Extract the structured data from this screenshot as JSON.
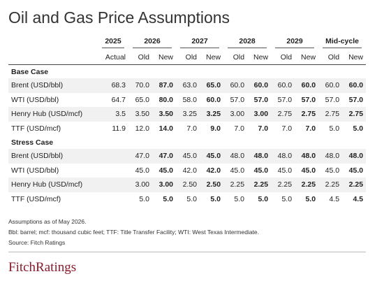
{
  "title": "Oil and Gas Price Assumptions",
  "table": {
    "years": [
      "2025",
      "2026",
      "2027",
      "2028",
      "2029",
      "Mid-cycle"
    ],
    "subheaders": [
      "Actual",
      "Old",
      "New",
      "Old",
      "New",
      "Old",
      "New",
      "Old",
      "New",
      "Old",
      "New"
    ],
    "sections": [
      {
        "name": "Base Case",
        "rows": [
          {
            "label": "Brent (USD/bbl)",
            "values": [
              "68.3",
              "70.0",
              "87.0",
              "63.0",
              "65.0",
              "60.0",
              "60.0",
              "60.0",
              "60.0",
              "60.0",
              "60.0"
            ]
          },
          {
            "label": "WTI (USD/bbl)",
            "values": [
              "64.7",
              "65.0",
              "80.0",
              "58.0",
              "60.0",
              "57.0",
              "57.0",
              "57.0",
              "57.0",
              "57.0",
              "57.0"
            ]
          },
          {
            "label": "Henry Hub (USD/mcf)",
            "values": [
              "3.5",
              "3.50",
              "3.50",
              "3.25",
              "3.25",
              "3.00",
              "3.00",
              "2.75",
              "2.75",
              "2.75",
              "2.75"
            ]
          },
          {
            "label": "TTF (USD/mcf)",
            "values": [
              "11.9",
              "12.0",
              "14.0",
              "7.0",
              "9.0",
              "7.0",
              "7.0",
              "7.0",
              "7.0",
              "5.0",
              "5.0"
            ]
          }
        ]
      },
      {
        "name": "Stress Case",
        "rows": [
          {
            "label": "Brent (USD/bbl)",
            "values": [
              null,
              "47.0",
              "47.0",
              "45.0",
              "45.0",
              "48.0",
              "48.0",
              "48.0",
              "48.0",
              "48.0",
              "48.0"
            ]
          },
          {
            "label": "WTI (USD/bbl)",
            "values": [
              null,
              "45.0",
              "45.0",
              "42.0",
              "42.0",
              "45.0",
              "45.0",
              "45.0",
              "45.0",
              "45.0",
              "45.0"
            ]
          },
          {
            "label": "Henry Hub (USD/mcf)",
            "values": [
              null,
              "3.00",
              "3.00",
              "2.50",
              "2.50",
              "2.25",
              "2.25",
              "2.25",
              "2.25",
              "2.25",
              "2.25"
            ]
          },
          {
            "label": "TTF (USD/mcf)",
            "values": [
              null,
              "5.0",
              "5.0",
              "5.0",
              "5.0",
              "5.0",
              "5.0",
              "5.0",
              "5.0",
              "4.5",
              "4.5"
            ]
          }
        ]
      }
    ]
  },
  "notes": [
    "Assumptions as of May 2026.",
    "Bbl: barrel; mcf: thousand cubic feet; TTF: Title Transfer Facility; WTI: West Texas Intermediate.",
    "Source: Fitch Ratings"
  ],
  "logo": "FitchRatings"
}
